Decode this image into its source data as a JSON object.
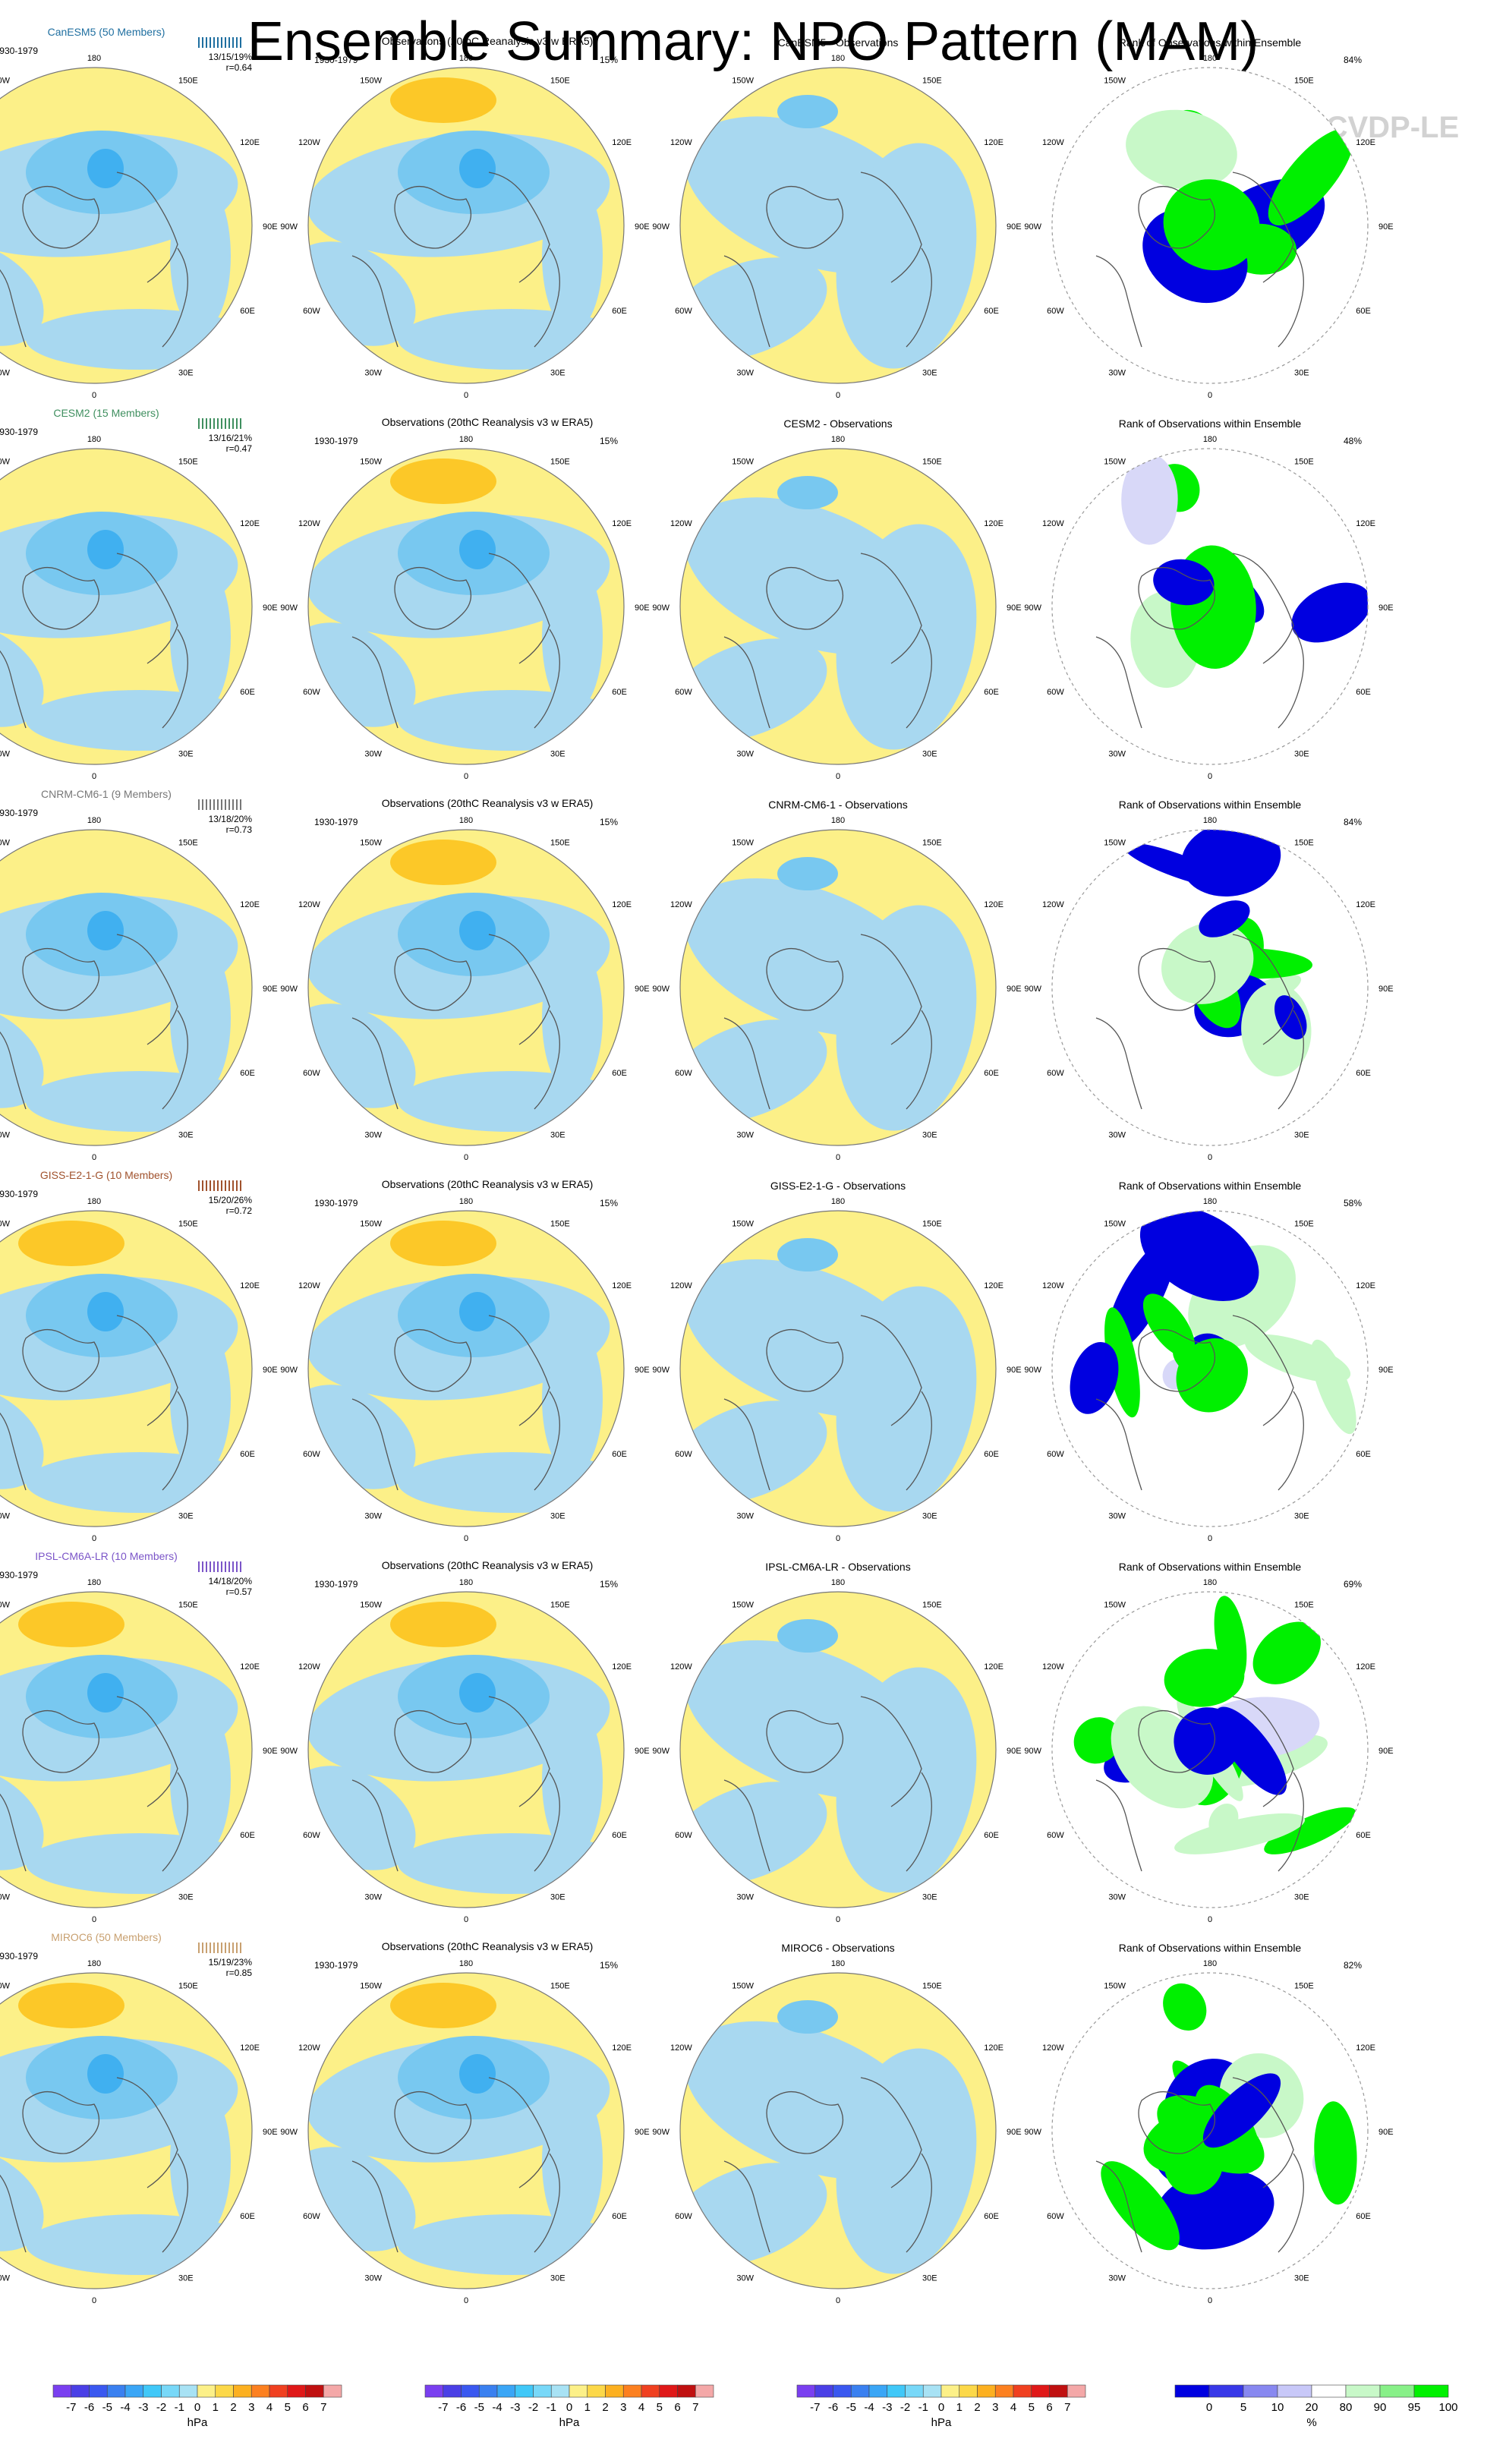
{
  "page": {
    "title": "Ensemble Summary: NPO Pattern (MAM)",
    "watermark": "© CVDP-LE"
  },
  "chart_data": {
    "type": "polar-map-panels",
    "period_label": "1930-1979",
    "lon_labels": [
      "180",
      "150E",
      "120E",
      "90E",
      "60E",
      "30E",
      "0",
      "30W",
      "60W",
      "90W",
      "120W",
      "150W"
    ],
    "colors": {
      "blue_light": "#a8d8f0",
      "blue_mid": "#78c8f0",
      "blue_dark": "#40b0f0",
      "blue_deep": "#3a80e0",
      "yellow_light": "#fcf088",
      "orange": "#fcc828",
      "rank_white": "#ffffff",
      "rank_lightblue": "#d8d8f8",
      "rank_blue": "#0000e0",
      "rank_lightgreen": "#c8f8c8",
      "rank_green": "#00f000"
    },
    "rows": [
      {
        "model": "CanESM5 (50 Members)",
        "model_color": "#1f6fa0",
        "stats": "13/15/19%",
        "r": "r=0.64",
        "obs_title": "Observations (20thC Reanalysis v3 w ERA5)",
        "obs_pct": "15%",
        "diff_title": "CanESM5 - Observations",
        "rank_title": "Rank of Observations within Ensemble",
        "rank_pct": "84%"
      },
      {
        "model": "CESM2 (15 Members)",
        "model_color": "#3f8f5f",
        "stats": "13/16/21%",
        "r": "r=0.47",
        "obs_title": "Observations (20thC Reanalysis v3 w ERA5)",
        "obs_pct": "15%",
        "diff_title": "CESM2 - Observations",
        "rank_title": "Rank of Observations within Ensemble",
        "rank_pct": "48%"
      },
      {
        "model": "CNRM-CM6-1 (9 Members)",
        "model_color": "#777777",
        "stats": "13/18/20%",
        "r": "r=0.73",
        "obs_title": "Observations (20thC Reanalysis v3 w ERA5)",
        "obs_pct": "15%",
        "diff_title": "CNRM-CM6-1 - Observations",
        "rank_title": "Rank of Observations within Ensemble",
        "rank_pct": "84%"
      },
      {
        "model": "GISS-E2-1-G (10 Members)",
        "model_color": "#a0522d",
        "stats": "15/20/26%",
        "r": "r=0.72",
        "obs_title": "Observations (20thC Reanalysis v3 w ERA5)",
        "obs_pct": "15%",
        "diff_title": "GISS-E2-1-G - Observations",
        "rank_title": "Rank of Observations within Ensemble",
        "rank_pct": "58%"
      },
      {
        "model": "IPSL-CM6A-LR (10 Members)",
        "model_color": "#7b55c8",
        "stats": "14/18/20%",
        "r": "r=0.57",
        "obs_title": "Observations (20thC Reanalysis v3 w ERA5)",
        "obs_pct": "15%",
        "diff_title": "IPSL-CM6A-LR - Observations",
        "rank_title": "Rank of Observations within Ensemble",
        "rank_pct": "69%"
      },
      {
        "model": "MIROC6 (50 Members)",
        "model_color": "#c8a070",
        "stats": "15/19/23%",
        "r": "r=0.85",
        "obs_title": "Observations (20thC Reanalysis v3 w ERA5)",
        "obs_pct": "15%",
        "diff_title": "MIROC6 - Observations",
        "rank_title": "Rank of Observations within Ensemble",
        "rank_pct": "82%"
      }
    ],
    "colorbar_hpa": {
      "labels": [
        "-7",
        "-6",
        "-5",
        "-4",
        "-3",
        "-2",
        "-1",
        "0",
        "1",
        "2",
        "3",
        "4",
        "5",
        "6",
        "7"
      ],
      "unit": "hPa",
      "colors": [
        "#7a3ff0",
        "#4a3fe6",
        "#3a58f0",
        "#3a80f0",
        "#3aa6f6",
        "#40c8f8",
        "#78d8f8",
        "#a8e2f4",
        "#fcf088",
        "#fcd848",
        "#fcb020",
        "#fc8020",
        "#f04020",
        "#e01818",
        "#c01010",
        "#f4a8a8"
      ]
    },
    "colorbar_pct": {
      "labels": [
        "0",
        "5",
        "10",
        "20",
        "80",
        "90",
        "95",
        "100"
      ],
      "unit": "%",
      "colors": [
        "#0000e0",
        "#3838e8",
        "#8888f0",
        "#c8c8f8",
        "#ffffff",
        "#c8f8c8",
        "#88f088",
        "#00f000"
      ]
    }
  }
}
